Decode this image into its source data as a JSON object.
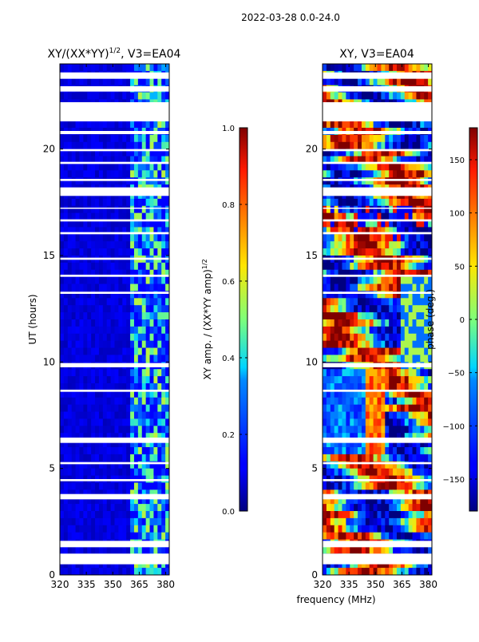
{
  "figure": {
    "suptitle": "2022-03-28 0.0-24.0"
  },
  "chart_data": [
    {
      "type": "heatmap",
      "title_prefix": "XY/(XX*YY)",
      "title_exponent": "1/2",
      "title_suffix": ", V3=EA04",
      "xlabel": "",
      "ylabel": "UT (hours)",
      "xlim": [
        320,
        382
      ],
      "ylim": [
        0,
        24
      ],
      "xticks": [
        320,
        335,
        350,
        365,
        380
      ],
      "yticks": [
        0,
        5,
        10,
        15,
        20
      ],
      "colorbar": {
        "label_prefix": "XY amp. / (XX*YY amp)",
        "label_exponent": "1/2",
        "range": [
          0.0,
          1.0
        ],
        "ticks": [
          "0.0",
          "0.2",
          "0.4",
          "0.6",
          "0.8",
          "1.0"
        ],
        "colormap": "jet"
      },
      "channel_blocks": [
        {
          "x_start": 320,
          "x_end": 359,
          "typical_value": 0.08
        },
        {
          "x_start": 359,
          "x_end": 382,
          "typical_value": 0.35
        }
      ],
      "flagged_ut_bands_hours": [
        [
          23.3,
          23.6
        ],
        [
          22.7,
          22.95
        ],
        [
          21.3,
          22.2
        ],
        [
          20.7,
          20.85
        ],
        [
          19.9,
          20.0
        ],
        [
          19.3,
          19.4
        ],
        [
          18.5,
          18.6
        ],
        [
          17.8,
          18.2
        ],
        [
          17.2,
          17.25
        ],
        [
          16.6,
          16.7
        ],
        [
          16.0,
          16.1
        ],
        [
          14.8,
          14.9
        ],
        [
          14.0,
          14.1
        ],
        [
          13.2,
          13.3
        ],
        [
          9.75,
          9.95
        ],
        [
          8.6,
          8.7
        ],
        [
          6.2,
          6.45
        ],
        [
          5.2,
          5.3
        ],
        [
          4.4,
          4.5
        ],
        [
          3.55,
          3.8
        ],
        [
          1.3,
          1.6
        ],
        [
          0.5,
          1.0
        ]
      ]
    },
    {
      "type": "heatmap",
      "title": "XY, V3=EA04",
      "xlabel": "frequency (MHz)",
      "ylabel": "",
      "xlim": [
        320,
        382
      ],
      "ylim": [
        0,
        24
      ],
      "xticks": [
        320,
        335,
        350,
        365,
        380
      ],
      "yticks": [
        0,
        5,
        10,
        15,
        20
      ],
      "colorbar": {
        "label": "phase (deg.)",
        "range": [
          -180,
          180
        ],
        "ticks": [
          "−150",
          "−100",
          "−50",
          "0",
          "50",
          "100",
          "150"
        ],
        "colormap": "jet"
      },
      "phase_value_range_deg": [
        -180,
        180
      ],
      "flagged_ut_bands_hours": [
        [
          23.3,
          23.6
        ],
        [
          22.7,
          22.95
        ],
        [
          21.3,
          22.2
        ],
        [
          20.7,
          20.85
        ],
        [
          19.9,
          20.0
        ],
        [
          19.3,
          19.4
        ],
        [
          18.5,
          18.6
        ],
        [
          17.8,
          18.2
        ],
        [
          17.2,
          17.25
        ],
        [
          16.6,
          16.7
        ],
        [
          16.0,
          16.1
        ],
        [
          14.8,
          14.9
        ],
        [
          14.0,
          14.1
        ],
        [
          13.2,
          13.3
        ],
        [
          9.75,
          9.95
        ],
        [
          8.6,
          8.7
        ],
        [
          6.2,
          6.45
        ],
        [
          5.2,
          5.3
        ],
        [
          4.4,
          4.5
        ],
        [
          3.55,
          3.8
        ],
        [
          1.3,
          1.6
        ],
        [
          0.5,
          1.0
        ]
      ]
    }
  ]
}
